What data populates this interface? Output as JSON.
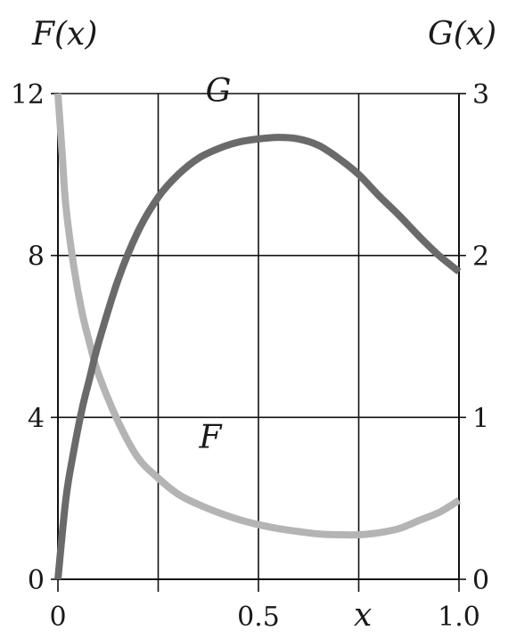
{
  "chart_data": {
    "type": "line",
    "title": "",
    "xlabel": "x",
    "ylabel_left": "F(x)",
    "ylabel_right": "G(x)",
    "xlim": [
      0,
      1.0
    ],
    "ylim_left": [
      0,
      12
    ],
    "ylim_right": [
      0,
      3
    ],
    "x_ticks": [
      {
        "value": 0,
        "label": "0"
      },
      {
        "value": 0.5,
        "label": "0.5"
      },
      {
        "value": 1.0,
        "label": "1.0"
      }
    ],
    "y_left_ticks": [
      {
        "value": 0,
        "label": "0"
      },
      {
        "value": 4,
        "label": "4"
      },
      {
        "value": 8,
        "label": "8"
      },
      {
        "value": 12,
        "label": "12"
      }
    ],
    "y_right_ticks": [
      {
        "value": 0,
        "label": "0"
      },
      {
        "value": 1,
        "label": "1"
      },
      {
        "value": 2,
        "label": "2"
      },
      {
        "value": 3,
        "label": "3"
      }
    ],
    "grid": true,
    "series": [
      {
        "name": "F",
        "axis": "left",
        "color": "#b4b4b4",
        "x": [
          0,
          0.01,
          0.02,
          0.04,
          0.06,
          0.08,
          0.1,
          0.15,
          0.2,
          0.25,
          0.3,
          0.35,
          0.4,
          0.45,
          0.5,
          0.55,
          0.6,
          0.65,
          0.7,
          0.75,
          0.8,
          0.85,
          0.9,
          0.95,
          1.0
        ],
        "y": [
          12.0,
          10.6,
          9.2,
          7.7,
          6.6,
          5.8,
          5.1,
          3.9,
          3.0,
          2.5,
          2.1,
          1.85,
          1.65,
          1.48,
          1.35,
          1.25,
          1.18,
          1.12,
          1.1,
          1.1,
          1.15,
          1.25,
          1.45,
          1.65,
          1.95
        ]
      },
      {
        "name": "G",
        "axis": "right",
        "color": "#6a6a6a",
        "x": [
          0,
          0.02,
          0.04,
          0.06,
          0.08,
          0.1,
          0.15,
          0.2,
          0.25,
          0.3,
          0.35,
          0.4,
          0.45,
          0.5,
          0.55,
          0.6,
          0.65,
          0.7,
          0.75,
          0.8,
          0.85,
          0.9,
          0.95,
          1.0
        ],
        "y": [
          0,
          0.5,
          0.8,
          1.05,
          1.25,
          1.45,
          1.85,
          2.15,
          2.36,
          2.5,
          2.6,
          2.66,
          2.7,
          2.72,
          2.73,
          2.72,
          2.68,
          2.6,
          2.5,
          2.37,
          2.25,
          2.12,
          2.0,
          1.9
        ]
      }
    ],
    "annotations": [
      {
        "text": "G",
        "series": "G",
        "x": 0.4,
        "y_axis": "right",
        "y": 2.95
      },
      {
        "text": "F",
        "series": "F",
        "x": 0.38,
        "y_axis": "left",
        "y": 3.25
      }
    ]
  }
}
